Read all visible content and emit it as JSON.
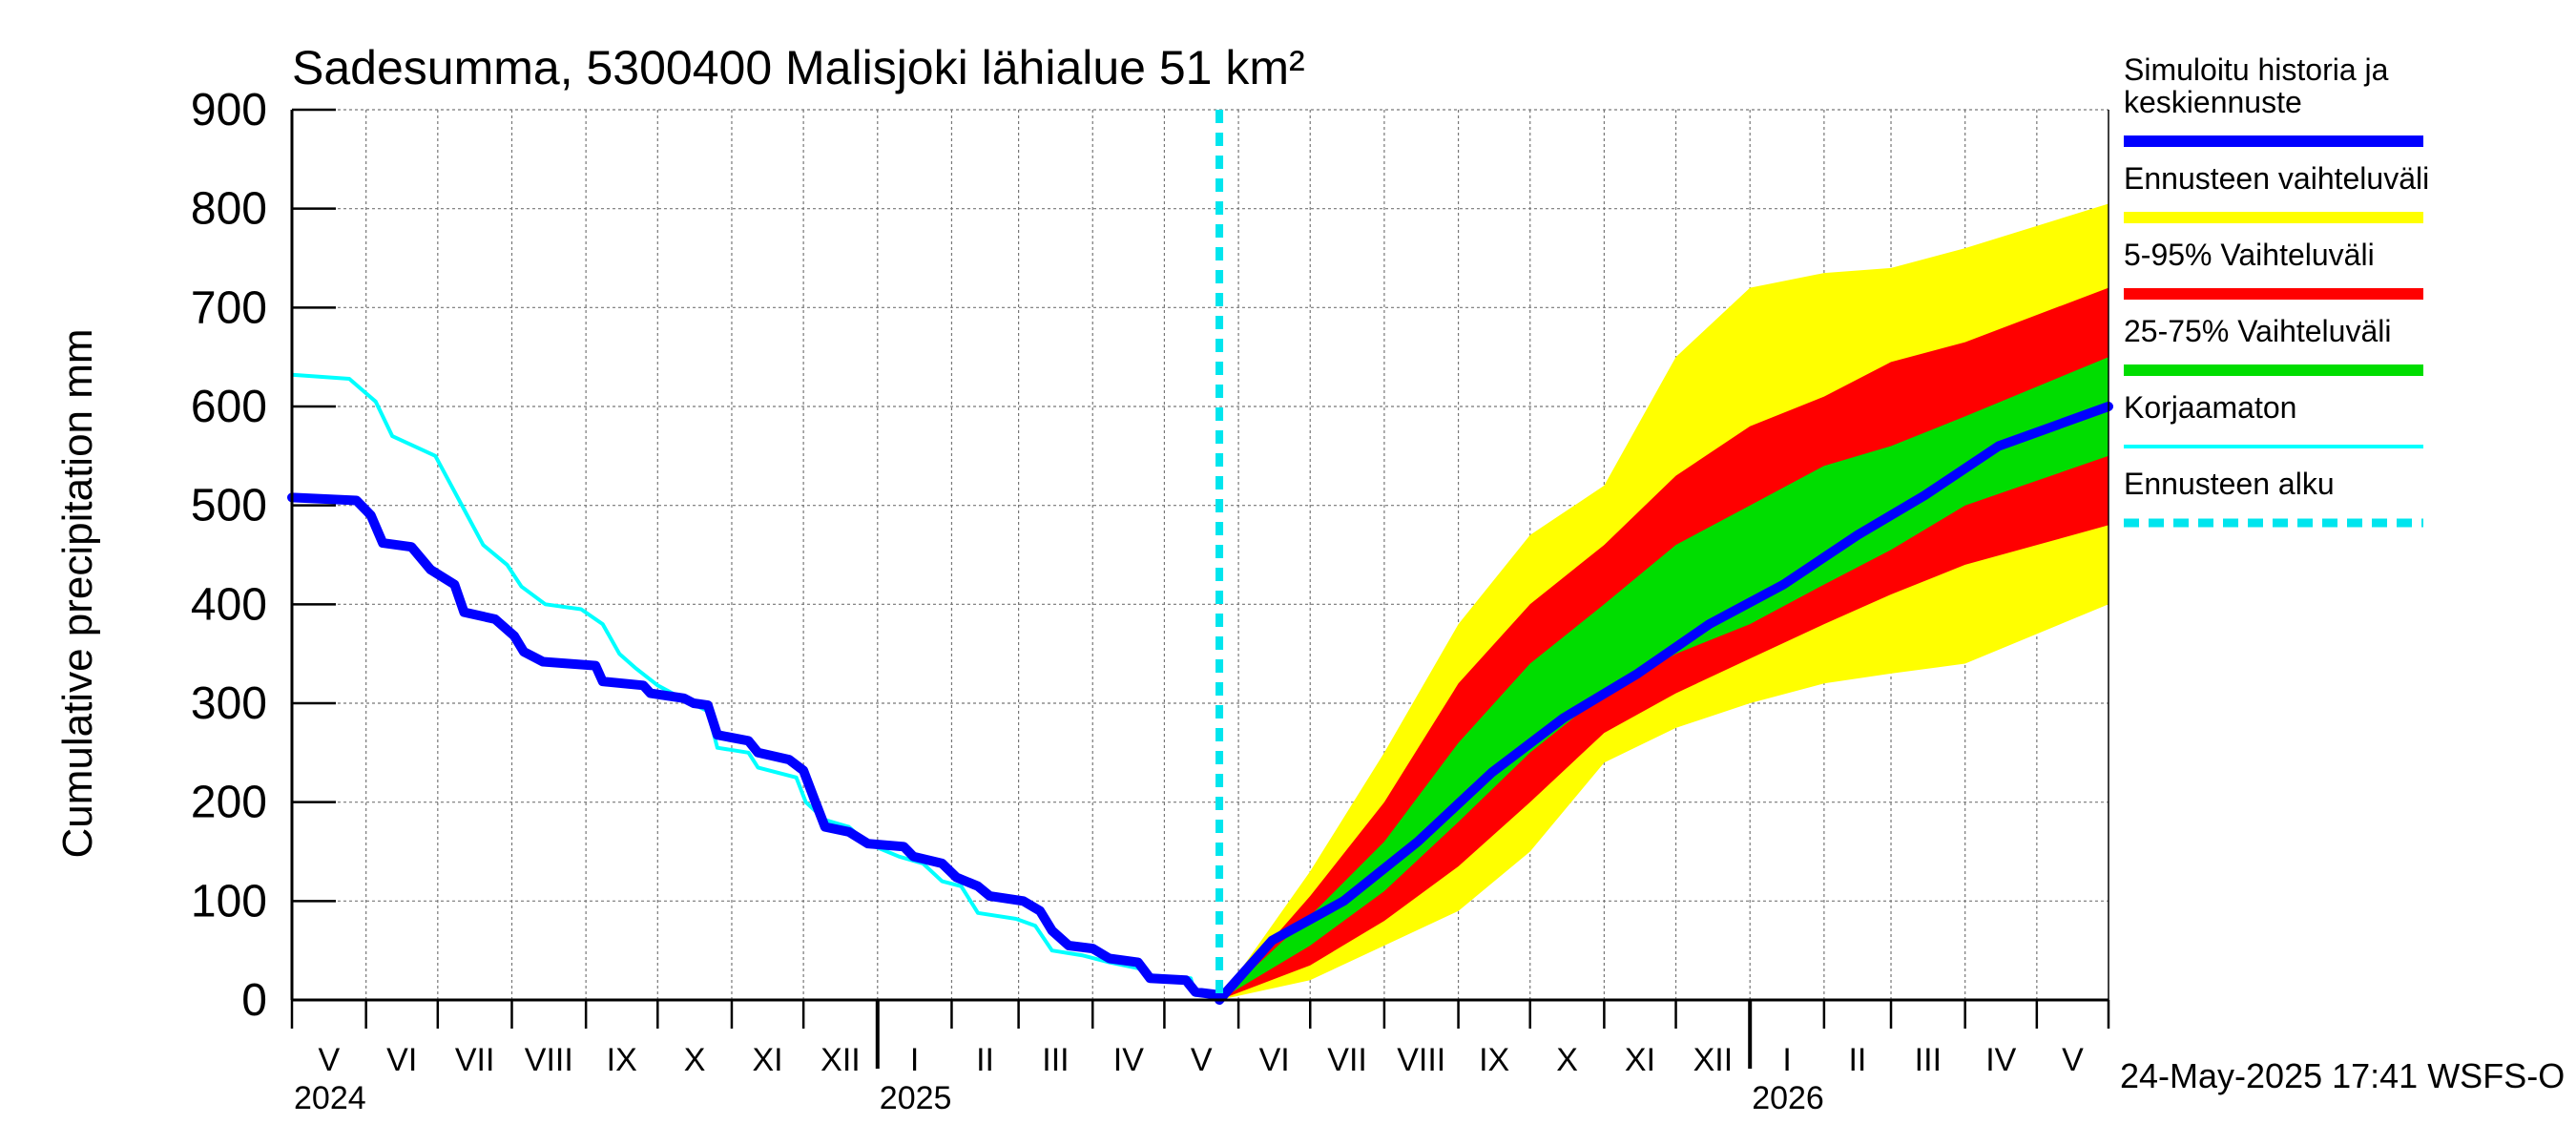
{
  "chart_data": {
    "type": "area",
    "title": "Sadesumma, 5300400 Malisjoki lähialue 51 km²",
    "ylabel": "Cumulative precipitation   mm",
    "xlabel": "",
    "ylim": [
      0,
      900
    ],
    "yticks": [
      0,
      100,
      200,
      300,
      400,
      500,
      600,
      700,
      800,
      900
    ],
    "grid": true,
    "legend_position": "right",
    "x_start": "2024-05-01",
    "x_end": "2026-05-31",
    "forecast_start": "2025-05-24",
    "months": [
      {
        "label": "V",
        "start": "2024-05-01"
      },
      {
        "label": "VI",
        "start": "2024-06-01"
      },
      {
        "label": "VII",
        "start": "2024-07-01"
      },
      {
        "label": "VIII",
        "start": "2024-08-01"
      },
      {
        "label": "IX",
        "start": "2024-09-01"
      },
      {
        "label": "X",
        "start": "2024-10-01"
      },
      {
        "label": "XI",
        "start": "2024-11-01"
      },
      {
        "label": "XII",
        "start": "2024-12-01"
      },
      {
        "label": "I",
        "start": "2025-01-01"
      },
      {
        "label": "II",
        "start": "2025-02-01"
      },
      {
        "label": "III",
        "start": "2025-03-01"
      },
      {
        "label": "IV",
        "start": "2025-04-01"
      },
      {
        "label": "V",
        "start": "2025-05-01"
      },
      {
        "label": "VI",
        "start": "2025-06-01"
      },
      {
        "label": "VII",
        "start": "2025-07-01"
      },
      {
        "label": "VIII",
        "start": "2025-08-01"
      },
      {
        "label": "IX",
        "start": "2025-09-01"
      },
      {
        "label": "X",
        "start": "2025-10-01"
      },
      {
        "label": "XI",
        "start": "2025-11-01"
      },
      {
        "label": "XII",
        "start": "2025-12-01"
      },
      {
        "label": "I",
        "start": "2026-01-01"
      },
      {
        "label": "II",
        "start": "2026-02-01"
      },
      {
        "label": "III",
        "start": "2026-03-01"
      },
      {
        "label": "IV",
        "start": "2026-04-01"
      },
      {
        "label": "V",
        "start": "2026-05-01"
      }
    ],
    "years": [
      {
        "label": "2024",
        "start": "2024-05-01"
      },
      {
        "label": "2025",
        "start": "2025-01-01"
      },
      {
        "label": "2026",
        "start": "2026-01-01"
      }
    ],
    "series": [
      {
        "name": "Simuloitu historia ja keskiennuste",
        "color": "#0000ff",
        "points": [
          [
            "2024-05-01",
            508
          ],
          [
            "2024-05-28",
            505
          ],
          [
            "2024-06-03",
            490
          ],
          [
            "2024-06-08",
            462
          ],
          [
            "2024-06-20",
            458
          ],
          [
            "2024-06-28",
            435
          ],
          [
            "2024-07-08",
            420
          ],
          [
            "2024-07-12",
            392
          ],
          [
            "2024-07-25",
            385
          ],
          [
            "2024-08-02",
            368
          ],
          [
            "2024-08-06",
            352
          ],
          [
            "2024-08-14",
            342
          ],
          [
            "2024-09-05",
            338
          ],
          [
            "2024-09-08",
            322
          ],
          [
            "2024-09-25",
            318
          ],
          [
            "2024-09-28",
            310
          ],
          [
            "2024-10-12",
            305
          ],
          [
            "2024-10-16",
            300
          ],
          [
            "2024-10-22",
            298
          ],
          [
            "2024-10-26",
            268
          ],
          [
            "2024-11-08",
            262
          ],
          [
            "2024-11-12",
            250
          ],
          [
            "2024-11-25",
            243
          ],
          [
            "2024-12-01",
            232
          ],
          [
            "2024-12-06",
            200
          ],
          [
            "2024-12-10",
            175
          ],
          [
            "2024-12-20",
            170
          ],
          [
            "2024-12-28",
            158
          ],
          [
            "2025-01-12",
            155
          ],
          [
            "2025-01-16",
            145
          ],
          [
            "2025-01-28",
            138
          ],
          [
            "2025-02-03",
            124
          ],
          [
            "2025-02-12",
            115
          ],
          [
            "2025-02-17",
            105
          ],
          [
            "2025-03-03",
            100
          ],
          [
            "2025-03-10",
            90
          ],
          [
            "2025-03-15",
            70
          ],
          [
            "2025-03-22",
            55
          ],
          [
            "2025-04-01",
            52
          ],
          [
            "2025-04-08",
            42
          ],
          [
            "2025-04-20",
            38
          ],
          [
            "2025-04-25",
            22
          ],
          [
            "2025-05-10",
            20
          ],
          [
            "2025-05-14",
            8
          ],
          [
            "2025-05-24",
            5
          ],
          [
            "2025-05-24",
            0
          ],
          [
            "2025-06-15",
            60
          ],
          [
            "2025-07-15",
            100
          ],
          [
            "2025-08-15",
            160
          ],
          [
            "2025-09-15",
            230
          ],
          [
            "2025-10-15",
            285
          ],
          [
            "2025-11-15",
            330
          ],
          [
            "2025-12-15",
            380
          ],
          [
            "2026-01-15",
            420
          ],
          [
            "2026-02-15",
            470
          ],
          [
            "2026-03-15",
            510
          ],
          [
            "2026-04-15",
            560
          ],
          [
            "2026-05-31",
            600
          ]
        ]
      },
      {
        "name": "Korjaamaton",
        "color": "#00ffff",
        "points": [
          [
            "2024-05-01",
            632
          ],
          [
            "2024-05-25",
            628
          ],
          [
            "2024-06-05",
            605
          ],
          [
            "2024-06-12",
            570
          ],
          [
            "2024-06-30",
            550
          ],
          [
            "2024-07-10",
            505
          ],
          [
            "2024-07-20",
            460
          ],
          [
            "2024-07-30",
            440
          ],
          [
            "2024-08-05",
            418
          ],
          [
            "2024-08-15",
            400
          ],
          [
            "2024-08-30",
            395
          ],
          [
            "2024-09-08",
            380
          ],
          [
            "2024-09-15",
            350
          ],
          [
            "2024-09-22",
            335
          ],
          [
            "2024-10-01",
            318
          ],
          [
            "2024-10-15",
            300
          ],
          [
            "2024-10-22",
            292
          ],
          [
            "2024-10-26",
            255
          ],
          [
            "2024-11-08",
            250
          ],
          [
            "2024-11-12",
            235
          ],
          [
            "2024-11-28",
            225
          ],
          [
            "2024-12-02",
            200
          ],
          [
            "2024-12-10",
            182
          ],
          [
            "2024-12-20",
            175
          ],
          [
            "2024-12-28",
            158
          ],
          [
            "2025-01-10",
            145
          ],
          [
            "2025-01-20",
            138
          ],
          [
            "2025-01-28",
            120
          ],
          [
            "2025-02-05",
            115
          ],
          [
            "2025-02-12",
            88
          ],
          [
            "2025-02-28",
            82
          ],
          [
            "2025-03-08",
            75
          ],
          [
            "2025-03-15",
            50
          ],
          [
            "2025-03-28",
            45
          ],
          [
            "2025-04-08",
            38
          ],
          [
            "2025-04-20",
            32
          ],
          [
            "2025-04-25",
            25
          ],
          [
            "2025-05-12",
            22
          ],
          [
            "2025-05-14",
            5
          ],
          [
            "2025-05-24",
            5
          ]
        ]
      },
      {
        "name": "Ennusteen vaihteluväli",
        "color": "#ffff00",
        "upper": [
          [
            "2025-05-24",
            0
          ],
          [
            "2025-07-01",
            130
          ],
          [
            "2025-08-01",
            250
          ],
          [
            "2025-09-01",
            380
          ],
          [
            "2025-10-01",
            470
          ],
          [
            "2025-11-01",
            520
          ],
          [
            "2025-12-01",
            650
          ],
          [
            "2026-01-01",
            720
          ],
          [
            "2026-02-01",
            735
          ],
          [
            "2026-03-01",
            740
          ],
          [
            "2026-04-01",
            760
          ],
          [
            "2026-05-31",
            805
          ]
        ],
        "lower": [
          [
            "2025-05-24",
            0
          ],
          [
            "2025-07-01",
            20
          ],
          [
            "2025-08-01",
            55
          ],
          [
            "2025-09-01",
            90
          ],
          [
            "2025-10-01",
            150
          ],
          [
            "2025-11-01",
            240
          ],
          [
            "2025-12-01",
            275
          ],
          [
            "2026-01-01",
            300
          ],
          [
            "2026-02-01",
            320
          ],
          [
            "2026-03-01",
            330
          ],
          [
            "2026-04-01",
            340
          ],
          [
            "2026-05-31",
            400
          ]
        ]
      },
      {
        "name": "5-95% Vaihteluväli",
        "color": "#ff0000",
        "upper": [
          [
            "2025-05-24",
            0
          ],
          [
            "2025-07-01",
            105
          ],
          [
            "2025-08-01",
            200
          ],
          [
            "2025-09-01",
            320
          ],
          [
            "2025-10-01",
            400
          ],
          [
            "2025-11-01",
            460
          ],
          [
            "2025-12-01",
            530
          ],
          [
            "2026-01-01",
            580
          ],
          [
            "2026-02-01",
            610
          ],
          [
            "2026-03-01",
            645
          ],
          [
            "2026-04-01",
            665
          ],
          [
            "2026-05-31",
            720
          ]
        ],
        "lower": [
          [
            "2025-05-24",
            0
          ],
          [
            "2025-07-01",
            35
          ],
          [
            "2025-08-01",
            80
          ],
          [
            "2025-09-01",
            135
          ],
          [
            "2025-10-01",
            200
          ],
          [
            "2025-11-01",
            270
          ],
          [
            "2025-12-01",
            310
          ],
          [
            "2026-01-01",
            345
          ],
          [
            "2026-02-01",
            380
          ],
          [
            "2026-03-01",
            410
          ],
          [
            "2026-04-01",
            440
          ],
          [
            "2026-05-31",
            480
          ]
        ]
      },
      {
        "name": "25-75% Vaihteluväli",
        "color": "#00dd00",
        "upper": [
          [
            "2025-05-24",
            0
          ],
          [
            "2025-07-01",
            85
          ],
          [
            "2025-08-01",
            160
          ],
          [
            "2025-09-01",
            260
          ],
          [
            "2025-10-01",
            340
          ],
          [
            "2025-11-01",
            400
          ],
          [
            "2025-12-01",
            460
          ],
          [
            "2026-01-01",
            500
          ],
          [
            "2026-02-01",
            540
          ],
          [
            "2026-03-01",
            560
          ],
          [
            "2026-04-01",
            590
          ],
          [
            "2026-05-31",
            650
          ]
        ],
        "lower": [
          [
            "2025-05-24",
            0
          ],
          [
            "2025-07-01",
            55
          ],
          [
            "2025-08-01",
            110
          ],
          [
            "2025-09-01",
            180
          ],
          [
            "2025-10-01",
            250
          ],
          [
            "2025-11-01",
            310
          ],
          [
            "2025-12-01",
            350
          ],
          [
            "2026-01-01",
            380
          ],
          [
            "2026-02-01",
            420
          ],
          [
            "2026-03-01",
            455
          ],
          [
            "2026-04-01",
            500
          ],
          [
            "2026-05-31",
            550
          ]
        ]
      }
    ],
    "forecast_marker": {
      "name": "Ennusteen alku",
      "color": "#00e5ee",
      "date": "2025-05-24"
    }
  },
  "legend": {
    "items": [
      {
        "label_lines": [
          "Simuloitu historia ja",
          "keskiennuste"
        ],
        "color": "#0000ff",
        "style": "thick"
      },
      {
        "label_lines": [
          "Ennusteen vaihteluväli"
        ],
        "color": "#ffff00",
        "style": "thick"
      },
      {
        "label_lines": [
          "5-95% Vaihteluväli"
        ],
        "color": "#ff0000",
        "style": "thick"
      },
      {
        "label_lines": [
          "25-75% Vaihteluväli"
        ],
        "color": "#00dd00",
        "style": "thick"
      },
      {
        "label_lines": [
          "Korjaamaton"
        ],
        "color": "#00ffff",
        "style": "thin"
      },
      {
        "label_lines": [
          "Ennusteen alku"
        ],
        "color": "#00e5ee",
        "style": "dashed"
      }
    ]
  },
  "footer": {
    "timestamp": "24-May-2025 17:41 WSFS-O"
  }
}
